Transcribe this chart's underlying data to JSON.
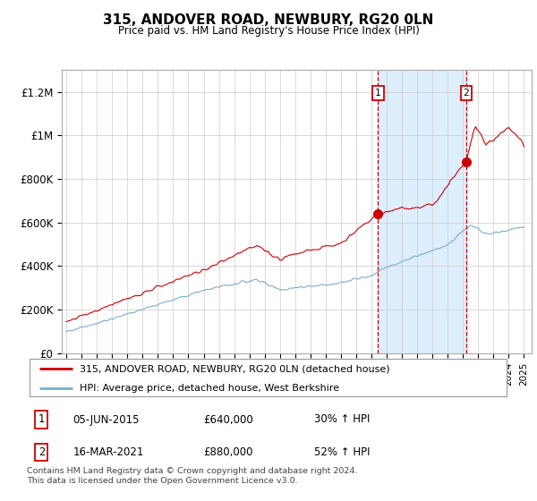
{
  "title": "315, ANDOVER ROAD, NEWBURY, RG20 0LN",
  "subtitle": "Price paid vs. HM Land Registry's House Price Index (HPI)",
  "ylabel_ticks": [
    "£0",
    "£200K",
    "£400K",
    "£600K",
    "£800K",
    "£1M",
    "£1.2M"
  ],
  "ytick_values": [
    0,
    200000,
    400000,
    600000,
    800000,
    1000000,
    1200000
  ],
  "ylim": [
    0,
    1300000
  ],
  "xlim_start": 1994.7,
  "xlim_end": 2025.5,
  "red_line_color": "#cc0000",
  "blue_line_color": "#7aadcc",
  "shaded_region_color": "#ddeeff",
  "marker1_x": 2015.43,
  "marker1_y": 640000,
  "marker2_x": 2021.21,
  "marker2_y": 880000,
  "legend_entry1": "315, ANDOVER ROAD, NEWBURY, RG20 0LN (detached house)",
  "legend_entry2": "HPI: Average price, detached house, West Berkshire",
  "table_row1_label": "1",
  "table_row1_date": "05-JUN-2015",
  "table_row1_price": "£640,000",
  "table_row1_hpi": "30% ↑ HPI",
  "table_row2_label": "2",
  "table_row2_date": "16-MAR-2021",
  "table_row2_price": "£880,000",
  "table_row2_hpi": "52% ↑ HPI",
  "footnote": "Contains HM Land Registry data © Crown copyright and database right 2024.\nThis data is licensed under the Open Government Licence v3.0."
}
